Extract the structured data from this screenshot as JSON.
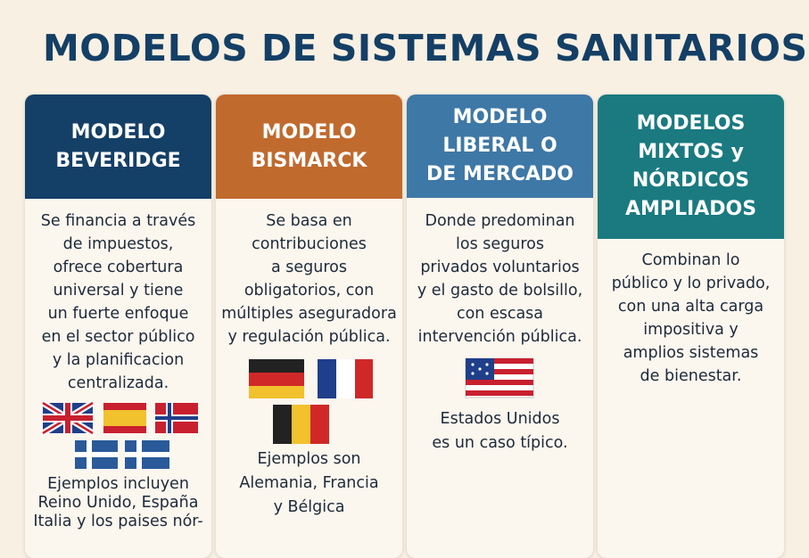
{
  "title": "MODELOS DE SISTEMAS SANITARIOS",
  "cards": [
    {
      "header": [
        "MODELO",
        "BEVERIDGE"
      ],
      "body": [
        "Se financia a través",
        "de impuestos,",
        "ofrece cobertura",
        "universal y tiene",
        "un fuerte enfoque",
        "en el sector público",
        "y la planificacion",
        "centralizada."
      ],
      "example": [
        "Ejemplos incluyen",
        "Reino Unido, España",
        "Italia y los paises nór-"
      ]
    },
    {
      "header": [
        "MODELO",
        "BISMARCK"
      ],
      "body": [
        "Se basa en",
        "contribuciones",
        "a seguros",
        "obligatorios, con",
        "múltiples aseguradora",
        "y regulación pública."
      ],
      "example": [
        "Ejemplos son",
        "Alemania, Francia",
        "y Bélgica"
      ]
    },
    {
      "header": [
        "MODELO",
        "LIBERAL O",
        "DE MERCADO"
      ],
      "body": [
        "Donde predominan",
        "los seguros",
        "privados voluntarios",
        "y el gasto de bolsillo,",
        "con escasa",
        "intervención pública."
      ],
      "example": [
        "Estados Unidos",
        "es un caso típico."
      ]
    },
    {
      "header": [
        "MODELOS",
        "MIXTOS y",
        "NÓRDICOS",
        "AMPLIADOS"
      ],
      "body": [
        "Combinan lo",
        "público y lo privado,",
        "con una alta carga",
        "impositiva y",
        "amplios sistemas",
        "de bienestar."
      ]
    }
  ]
}
